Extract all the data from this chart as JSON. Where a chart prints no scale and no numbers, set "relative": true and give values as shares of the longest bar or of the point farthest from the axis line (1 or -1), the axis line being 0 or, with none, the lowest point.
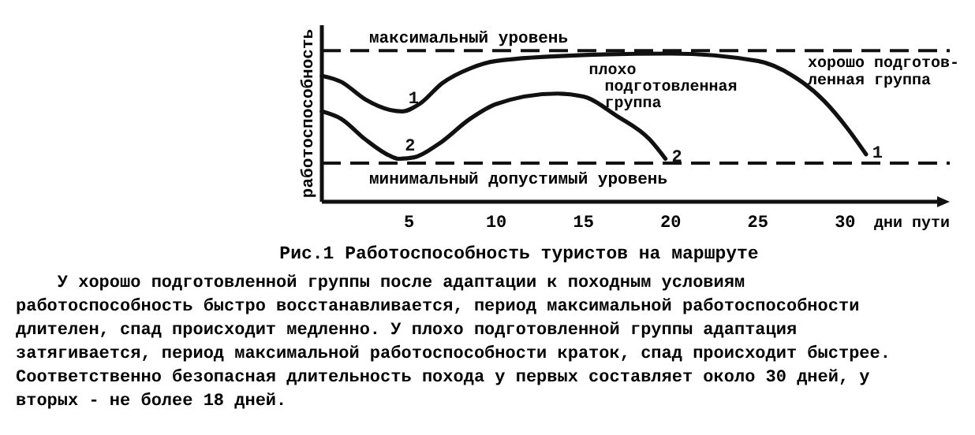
{
  "chart_data": {
    "type": "line",
    "title": "Рис.1 Работоспособность туристов на маршруте",
    "ylabel": "работоспособность",
    "xlabel": "дни пути",
    "relative": true,
    "xlim": [
      0,
      36
    ],
    "xticks": [
      5,
      10,
      15,
      20,
      25,
      30
    ],
    "grid": false,
    "legend": false,
    "marker": "none",
    "line_style": "solid",
    "series": [
      {
        "name": "1",
        "color": "#111111",
        "x": [
          0,
          1.1,
          2.5,
          3.9,
          4.6,
          5.6,
          6.9,
          8.5,
          10,
          15,
          20,
          25,
          27,
          28.8,
          30.1,
          31.2
        ],
        "values": [
          0.85,
          0.81,
          0.69,
          0.62,
          0.61,
          0.66,
          0.8,
          0.9,
          0.95,
          0.99,
          1.0,
          0.95,
          0.85,
          0.68,
          0.5,
          0.32
        ]
      },
      {
        "name": "2",
        "color": "#111111",
        "x": [
          0,
          1.1,
          2.5,
          3.9,
          4.4,
          5.3,
          6.7,
          8.5,
          10,
          13.5,
          15,
          16.9,
          18.8,
          19.7
        ],
        "values": [
          0.61,
          0.56,
          0.42,
          0.31,
          0.29,
          0.3,
          0.39,
          0.56,
          0.66,
          0.73,
          0.71,
          0.58,
          0.42,
          0.29
        ]
      }
    ],
    "ref_lines": [
      {
        "axis": "y",
        "value": 1.02,
        "label": "максимальный уровень",
        "line_style": "dashed"
      },
      {
        "axis": "y",
        "value": 0.26,
        "label": "минимальный допустимый уровень",
        "line_style": "dashed"
      }
    ],
    "annotations": [
      "хорошо подготов-\nленная группа",
      "плохо\nподготовленная\nгруппа",
      "У хорошо подготовленной группы после адаптации к походным условиям работоспособность быстро восстанавливается, период максимальной работоспособности длителен, спад происходит медленно. У плохо подготовленной группы адаптация затягивается, период максимальной работоспособности краток, спад происходит быстрее. Соответственно безопасная длительность похода у первых составляет около 30 дней, у вторых - не более 18 дней."
    ]
  }
}
